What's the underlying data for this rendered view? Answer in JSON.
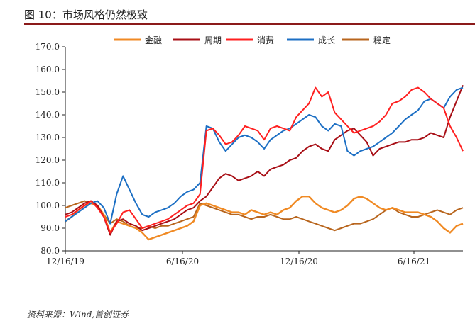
{
  "caption": "图 10：市场风格仍然极致",
  "source": "资料来源：Wind,首创证券",
  "chart_data": {
    "type": "line",
    "title": "",
    "xlabel": "",
    "ylabel": "",
    "ylim": [
      80,
      170
    ],
    "yticks": [
      "170.0",
      "160.0",
      "150.0",
      "140.0",
      "130.0",
      "120.0",
      "110.0",
      "100.0",
      "90.0",
      "80.0"
    ],
    "xticks": [
      "12/16/19",
      "6/16/20",
      "12/16/20",
      "6/16/21"
    ],
    "legend_position": "top",
    "colors": {
      "金融": "#f08a24",
      "周期": "#a80f16",
      "消费": "#ff1f1f",
      "成长": "#1c6fc4",
      "稳定": "#b8651d"
    },
    "series": [
      {
        "name": "金融",
        "values": [
          93,
          95,
          98,
          100,
          101,
          100,
          96,
          88,
          93,
          92,
          91,
          90,
          88,
          85,
          86,
          87,
          88,
          89,
          90,
          91,
          93,
          100,
          101,
          100,
          99,
          98,
          97,
          97,
          96,
          98,
          97,
          96,
          97,
          96,
          98,
          99,
          102,
          104,
          104,
          101,
          99,
          98,
          97,
          98,
          100,
          103,
          104,
          103,
          101,
          99,
          98,
          99,
          98,
          97,
          97,
          97,
          96,
          95,
          93,
          90,
          88,
          91,
          92
        ]
      },
      {
        "name": "周期",
        "values": [
          96,
          97,
          99,
          101,
          102,
          100,
          95,
          87,
          93,
          94,
          92,
          91,
          89,
          90,
          91,
          92,
          93,
          94,
          96,
          98,
          99,
          102,
          104,
          108,
          112,
          114,
          113,
          111,
          112,
          113,
          115,
          113,
          116,
          117,
          118,
          120,
          121,
          124,
          126,
          127,
          125,
          124,
          129,
          131,
          133,
          134,
          131,
          128,
          122,
          125,
          126,
          127,
          128,
          128,
          129,
          129,
          130,
          132,
          131,
          130,
          139,
          146,
          153
        ]
      },
      {
        "name": "消费",
        "values": [
          95,
          96,
          98,
          100,
          102,
          99,
          95,
          88,
          92,
          97,
          98,
          94,
          90,
          91,
          92,
          93,
          94,
          96,
          98,
          100,
          101,
          105,
          133,
          134,
          131,
          127,
          128,
          131,
          135,
          134,
          133,
          129,
          134,
          135,
          134,
          133,
          139,
          142,
          145,
          152,
          148,
          150,
          141,
          138,
          135,
          132,
          133,
          134,
          135,
          137,
          140,
          145,
          146,
          148,
          151,
          152,
          150,
          147,
          145,
          143,
          135,
          130,
          124
        ]
      },
      {
        "name": "成长",
        "values": [
          93,
          95,
          97,
          99,
          101,
          102,
          99,
          92,
          105,
          113,
          107,
          101,
          96,
          95,
          97,
          98,
          99,
          101,
          104,
          106,
          107,
          110,
          135,
          134,
          128,
          124,
          127,
          130,
          131,
          130,
          128,
          125,
          129,
          131,
          133,
          134,
          136,
          138,
          140,
          139,
          135,
          133,
          136,
          135,
          124,
          122,
          124,
          125,
          126,
          128,
          130,
          132,
          135,
          138,
          140,
          142,
          146,
          147,
          145,
          143,
          148,
          151,
          152
        ]
      },
      {
        "name": "稳定",
        "values": [
          99,
          100,
          101,
          102,
          101,
          100,
          96,
          92,
          94,
          93,
          91,
          90,
          90,
          91,
          90,
          91,
          91,
          92,
          93,
          94,
          95,
          101,
          100,
          99,
          98,
          97,
          96,
          96,
          95,
          94,
          95,
          95,
          96,
          95,
          94,
          94,
          95,
          94,
          93,
          92,
          91,
          90,
          89,
          90,
          91,
          92,
          92,
          93,
          94,
          96,
          98,
          99,
          97,
          96,
          95,
          95,
          96,
          97,
          98,
          97,
          96,
          98,
          99
        ]
      }
    ]
  }
}
